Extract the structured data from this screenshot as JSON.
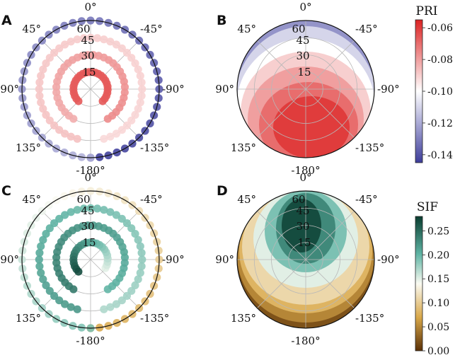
{
  "chart_data": [
    {
      "panel": "A",
      "type": "scatter",
      "variable": "PRI",
      "angle_labels": [
        "0°",
        "-45°",
        "-90°",
        "-135°",
        "-180°",
        "135°",
        "90°",
        "45°"
      ],
      "radial_ticks": [
        "15",
        "30",
        "45",
        "60"
      ],
      "rmax": 60,
      "rings": [
        {
          "zenith": 15,
          "azimuth_start": -135,
          "azimuth_end": 135,
          "value_start": -0.066,
          "value_end": -0.066
        },
        {
          "zenith": 30,
          "azimuth_start": -150,
          "azimuth_end": 150,
          "value_start": -0.076,
          "value_end": -0.083
        },
        {
          "zenith": 45,
          "azimuth_start": -165,
          "azimuth_end": 165,
          "value_start": -0.092,
          "value_end": -0.087
        },
        {
          "zenith": 60,
          "azimuth_start": -180,
          "azimuth_end": 180,
          "value_start": -0.145,
          "value_end": -0.118
        }
      ]
    },
    {
      "panel": "B",
      "type": "heatmap",
      "variable": "PRI",
      "angle_labels": [
        "0°",
        "-45°",
        "-90°",
        "-135°",
        "-180°",
        "135°",
        "90°",
        "45°"
      ],
      "radial_ticks": [
        "15",
        "30",
        "45",
        "60"
      ],
      "contour_levels": [
        -0.14,
        -0.125,
        -0.11,
        -0.1,
        -0.09,
        -0.08,
        -0.07,
        -0.06
      ]
    },
    {
      "panel": "C",
      "type": "scatter",
      "variable": "SIF",
      "angle_labels": [
        "0°",
        "-45°",
        "-90°",
        "-135°",
        "-180°",
        "135°",
        "90°",
        "45°"
      ],
      "radial_ticks": [
        "15",
        "30",
        "45",
        "60"
      ],
      "rmax": 60,
      "rings": [
        {
          "zenith": 15,
          "azimuth_start": -120,
          "azimuth_end": 135,
          "value_start": 0.15,
          "value_end": 0.27
        },
        {
          "zenith": 30,
          "azimuth_start": -150,
          "azimuth_end": 150,
          "value_start": 0.2,
          "value_end": 0.24
        },
        {
          "zenith": 45,
          "azimuth_start": -165,
          "azimuth_end": 165,
          "value_start": 0.17,
          "value_end": 0.22
        },
        {
          "zenith": 60,
          "azimuth_start": -180,
          "azimuth_end": 180,
          "value_start": 0.07,
          "value_end": 0.19
        }
      ]
    },
    {
      "panel": "D",
      "type": "heatmap",
      "variable": "SIF",
      "angle_labels": [
        "0°",
        "-45°",
        "-90°",
        "-135°",
        "-180°",
        "135°",
        "90°",
        "45°"
      ],
      "radial_ticks": [
        "15",
        "30",
        "45",
        "60"
      ],
      "contour_levels": [
        0.02,
        0.05,
        0.08,
        0.11,
        0.15,
        0.19,
        0.23,
        0.27
      ]
    }
  ],
  "colorbars": [
    {
      "label": "PRI",
      "min": -0.145,
      "max": -0.055,
      "ticks": [
        "-0.06",
        "-0.08",
        "-0.10",
        "-0.12",
        "-0.14"
      ],
      "tick_values": [
        -0.06,
        -0.08,
        -0.1,
        -0.12,
        -0.14
      ],
      "colors": {
        "low": "#3d3d9a",
        "mid": "#ffffff",
        "high": "#dc2323"
      }
    },
    {
      "label": "SIF",
      "min": 0.0,
      "max": 0.28,
      "ticks": [
        "0.25",
        "0.20",
        "0.15",
        "0.10",
        "0.05",
        "0.00"
      ],
      "tick_values": [
        0.25,
        0.2,
        0.15,
        0.1,
        0.05,
        0.0
      ],
      "colors": {
        "low": "#5a3006",
        "lowmid": "#d9a84a",
        "mid": "#fafaf2",
        "highmid": "#5fb4a4",
        "high": "#0a3d30"
      }
    }
  ]
}
